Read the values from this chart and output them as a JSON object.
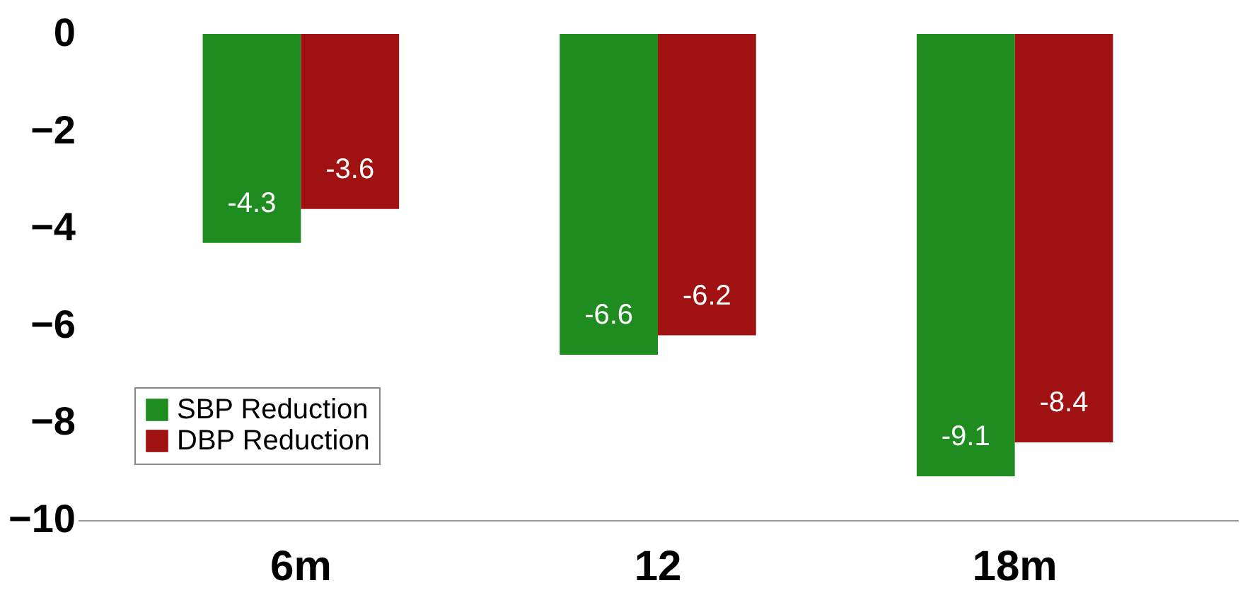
{
  "chart_data": {
    "type": "bar",
    "categories": [
      "6m",
      "12",
      "18m"
    ],
    "series": [
      {
        "name": "SBP Reduction",
        "color": "#1e8c1e",
        "values": [
          -4.3,
          -6.6,
          -9.1
        ]
      },
      {
        "name": "DBP Reduction",
        "color": "#a01212",
        "values": [
          -3.6,
          -6.2,
          -8.4
        ]
      }
    ],
    "ylim": [
      -10,
      0
    ],
    "yticks": [
      -10,
      -8,
      -6,
      -4,
      -2,
      0
    ],
    "grid": false,
    "legend": "bottom left",
    "data_labels": true
  }
}
